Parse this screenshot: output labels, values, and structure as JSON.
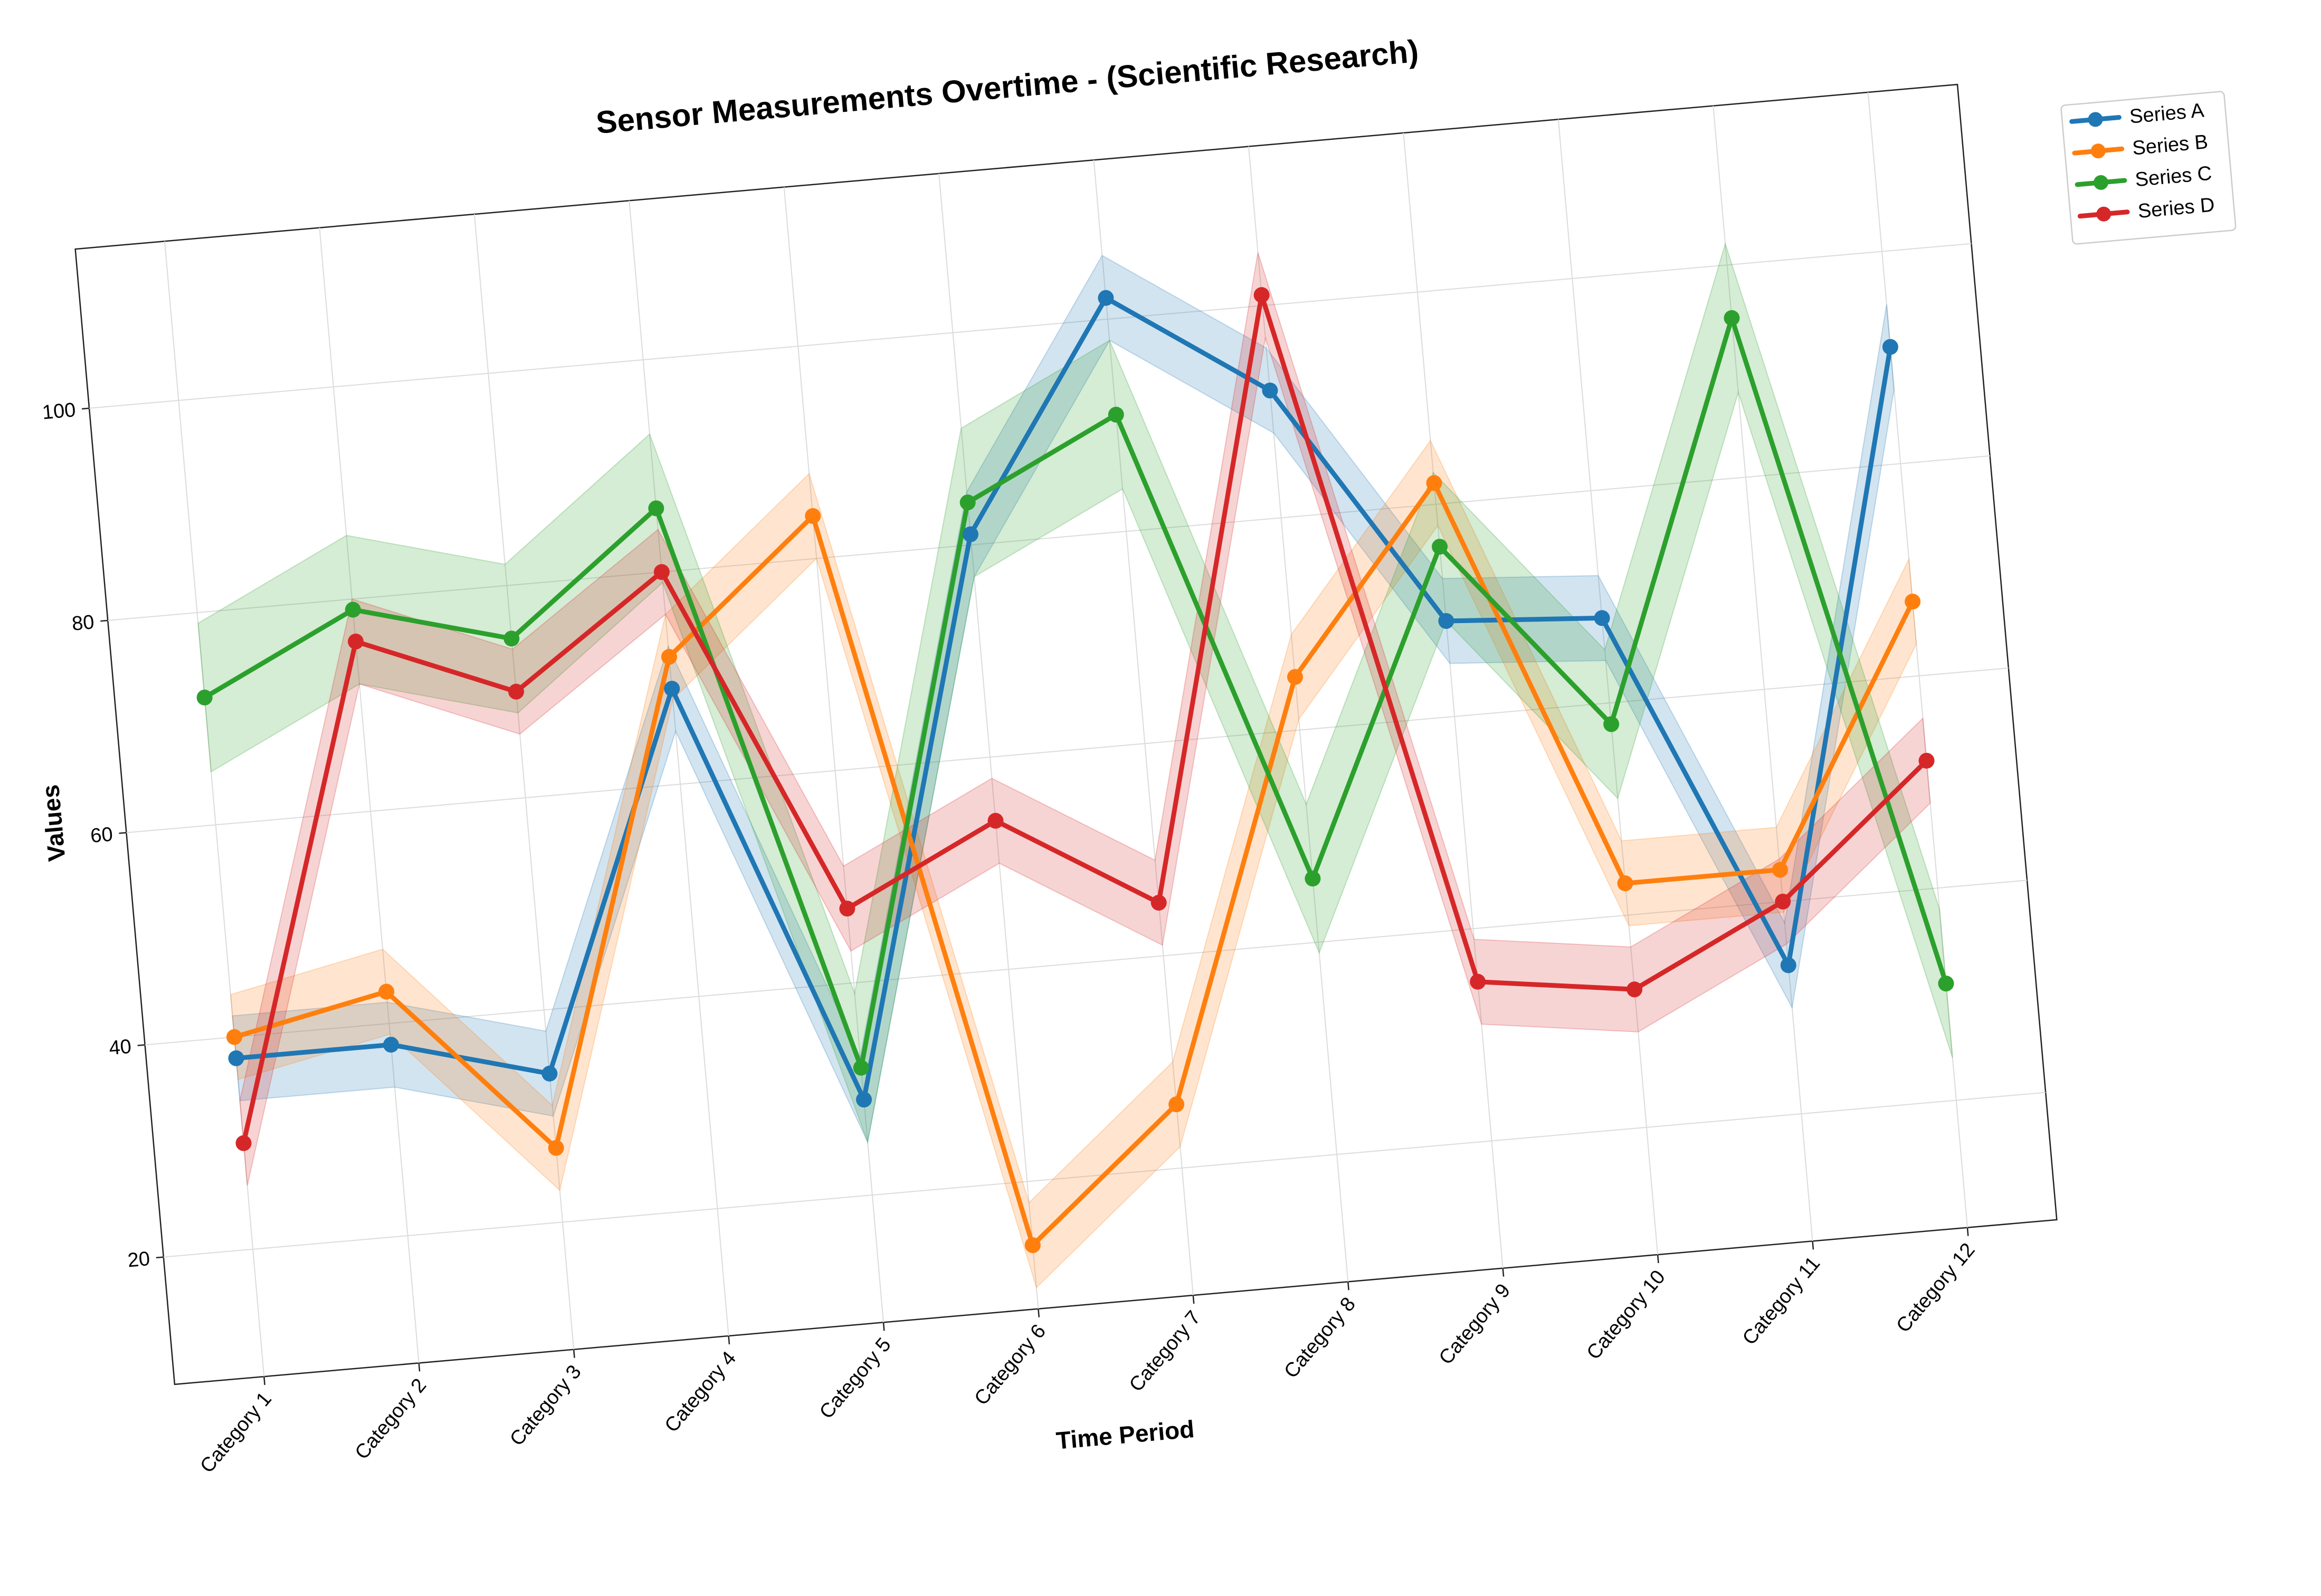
{
  "chart_data": {
    "type": "line",
    "title": "Sensor Measurements Overtime - (Scientific Research)",
    "xlabel": "Time Period",
    "ylabel": "Values",
    "categories": [
      "Category 1",
      "Category 2",
      "Category 3",
      "Category 4",
      "Category 5",
      "Category 6",
      "Category 7",
      "Category 8",
      "Category 9",
      "Category 10",
      "Category 11",
      "Category 12"
    ],
    "y_ticks": [
      20,
      40,
      60,
      80,
      100
    ],
    "ylim": [
      8,
      115
    ],
    "grid": true,
    "legend_position": "top-right",
    "rotation_degrees": -5,
    "series": [
      {
        "name": "Series A",
        "color": "#1f77b4",
        "values": [
          38,
          38,
          34,
          69,
          29,
          81,
          102,
          92,
          69,
          68,
          34,
          91
        ],
        "band": 4
      },
      {
        "name": "Series B",
        "color": "#ff7f0e",
        "values": [
          40,
          43,
          27,
          72,
          84,
          14,
          26,
          65,
          82,
          43,
          43,
          67
        ],
        "band": 4
      },
      {
        "name": "Series C",
        "color": "#2ca02c",
        "values": [
          72,
          79,
          75,
          86,
          32,
          84,
          91,
          46,
          76,
          58,
          95,
          31
        ],
        "band": 7
      },
      {
        "name": "Series D",
        "color": "#d62728",
        "values": [
          30,
          76,
          70,
          80,
          47,
          54,
          45,
          101,
          35,
          33,
          40,
          52
        ],
        "band": 4
      }
    ]
  }
}
